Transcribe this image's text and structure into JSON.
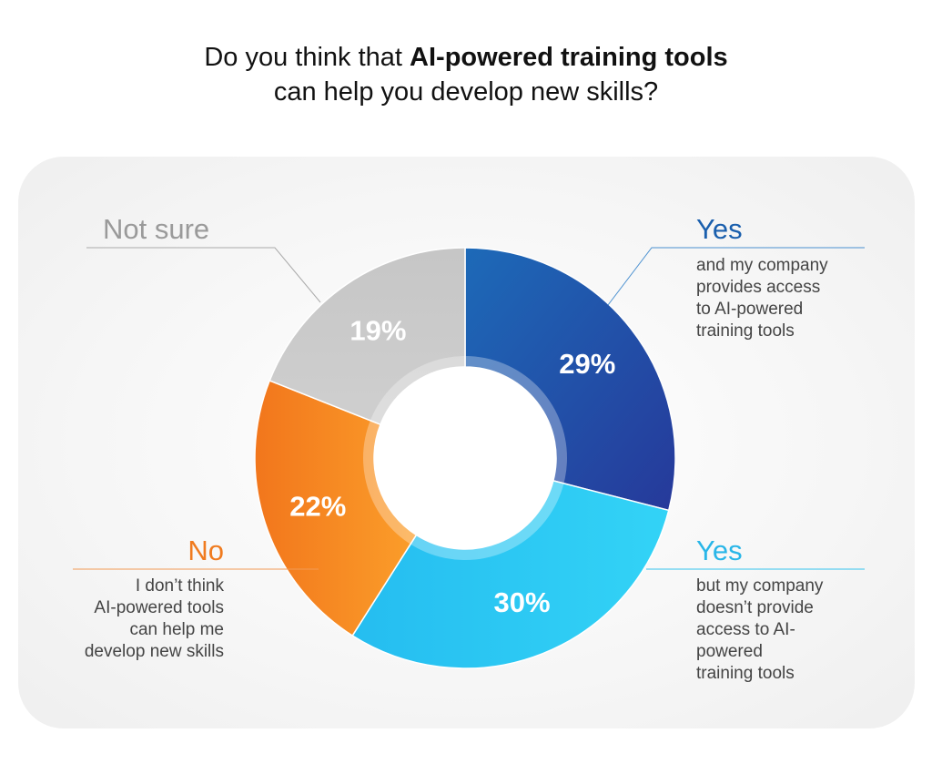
{
  "title": {
    "line1_pre": "Do you think that ",
    "line1_bold": "AI-powered training tools",
    "line2": "can help you develop new skills?"
  },
  "chart_data": {
    "type": "pie",
    "donut": true,
    "categories": [
      "Yes (company provides access)",
      "Yes (company doesn't provide access)",
      "No",
      "Not sure"
    ],
    "values": [
      29,
      30,
      22,
      19
    ],
    "value_labels": [
      "29%",
      "30%",
      "22%",
      "19%"
    ],
    "colors": [
      "#1f5fae",
      "#2cc8f2",
      "#f7891f",
      "#c8c8c8"
    ],
    "legend": [
      {
        "heading": "Yes",
        "text": [
          "and my company",
          "provides access",
          "to AI-powered",
          "training tools"
        ],
        "color": "#1a5fad"
      },
      {
        "heading": "Yes",
        "text": [
          "but my company",
          "doesn’t provide",
          "access to AI-",
          "powered",
          "training tools"
        ],
        "color": "#29b6e8"
      },
      {
        "heading": "No",
        "text": [
          "I don’t think",
          "AI-powered tools",
          "can help me",
          "develop new skills"
        ],
        "color": "#f07b1f"
      },
      {
        "heading": "Not sure",
        "text": [],
        "color": "#9a9a9a"
      }
    ]
  }
}
